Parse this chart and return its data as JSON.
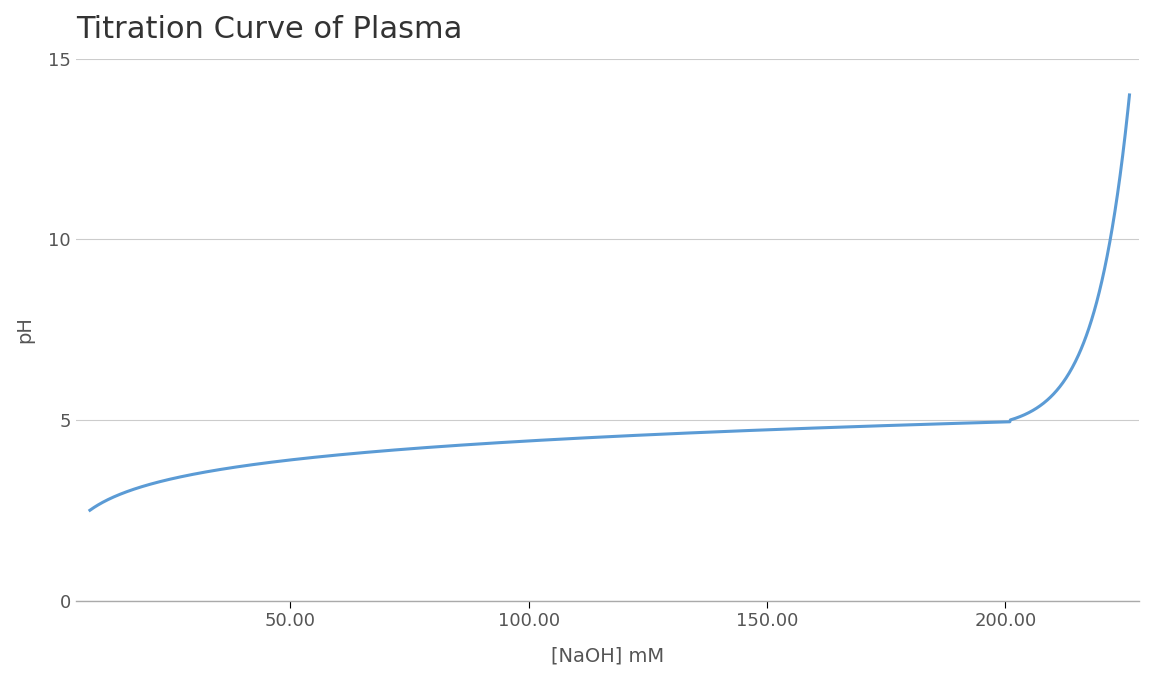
{
  "title": "Titration Curve of Plasma",
  "xlabel": "[NaOH] mM",
  "ylabel": "pH",
  "line_color": "#5b9bd5",
  "line_width": 2.2,
  "background_color": "#ffffff",
  "grid_color": "#cccccc",
  "title_fontsize": 22,
  "label_fontsize": 14,
  "tick_fontsize": 13,
  "xlim": [
    5,
    228
  ],
  "ylim": [
    0,
    15
  ],
  "yticks": [
    0,
    5,
    10,
    15
  ],
  "xticks": [
    50,
    100,
    150,
    200
  ],
  "xtick_labels": [
    "50.00",
    "100.00",
    "150.00",
    "200.00"
  ]
}
